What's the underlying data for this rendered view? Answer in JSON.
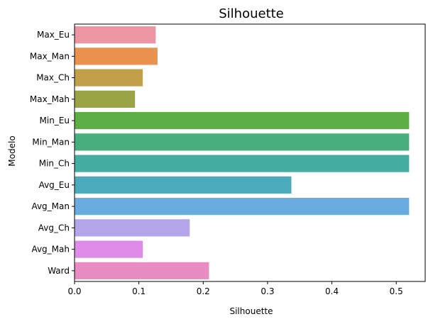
{
  "chart_data": {
    "type": "bar",
    "orientation": "horizontal",
    "title": "Silhouette",
    "xlabel": "Silhouette",
    "ylabel": "Modelo",
    "xlim": [
      0,
      0.545
    ],
    "xticks": [
      "0.0",
      "0.1",
      "0.2",
      "0.3",
      "0.4",
      "0.5"
    ],
    "grid": false,
    "categories": [
      "Max_Eu",
      "Max_Man",
      "Max_Ch",
      "Max_Mah",
      "Min_Eu",
      "Min_Man",
      "Min_Ch",
      "Avg_Eu",
      "Avg_Man",
      "Avg_Ch",
      "Avg_Mah",
      "Ward"
    ],
    "values": [
      0.126,
      0.129,
      0.106,
      0.094,
      0.52,
      0.52,
      0.52,
      0.337,
      0.52,
      0.179,
      0.106,
      0.209
    ],
    "colors": [
      "#ec96a3",
      "#e9924f",
      "#c29f49",
      "#9aa345",
      "#5eae46",
      "#49ae7d",
      "#45ada1",
      "#4aabbd",
      "#6aacdf",
      "#b4a4e9",
      "#df8be8",
      "#e88dc4"
    ]
  }
}
